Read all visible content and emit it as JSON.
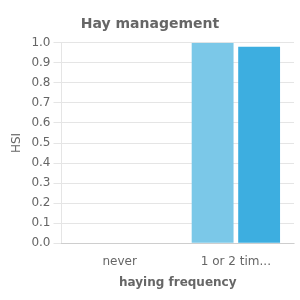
{
  "chart_data": {
    "type": "bar",
    "title": "Hay management",
    "categories": [
      "never",
      "1 or 2 tim..."
    ],
    "series": [
      {
        "color": "#7bc8e8",
        "values": [
          0.0,
          1.0
        ]
      },
      {
        "color": "#3daee0",
        "values": [
          0.0,
          0.98
        ]
      }
    ],
    "xlabel": "haying frequency",
    "ylabel": "HSI",
    "ylim": [
      0.0,
      1.0
    ],
    "yticks": [
      {
        "value": 0.0,
        "label": "0.0"
      },
      0.1,
      0.2,
      0.3,
      0.4,
      0.5,
      0.6,
      0.7,
      0.8,
      0.9,
      {
        "value": 1.0,
        "label": "1.0"
      }
    ],
    "grid": true,
    "legend": false
  }
}
